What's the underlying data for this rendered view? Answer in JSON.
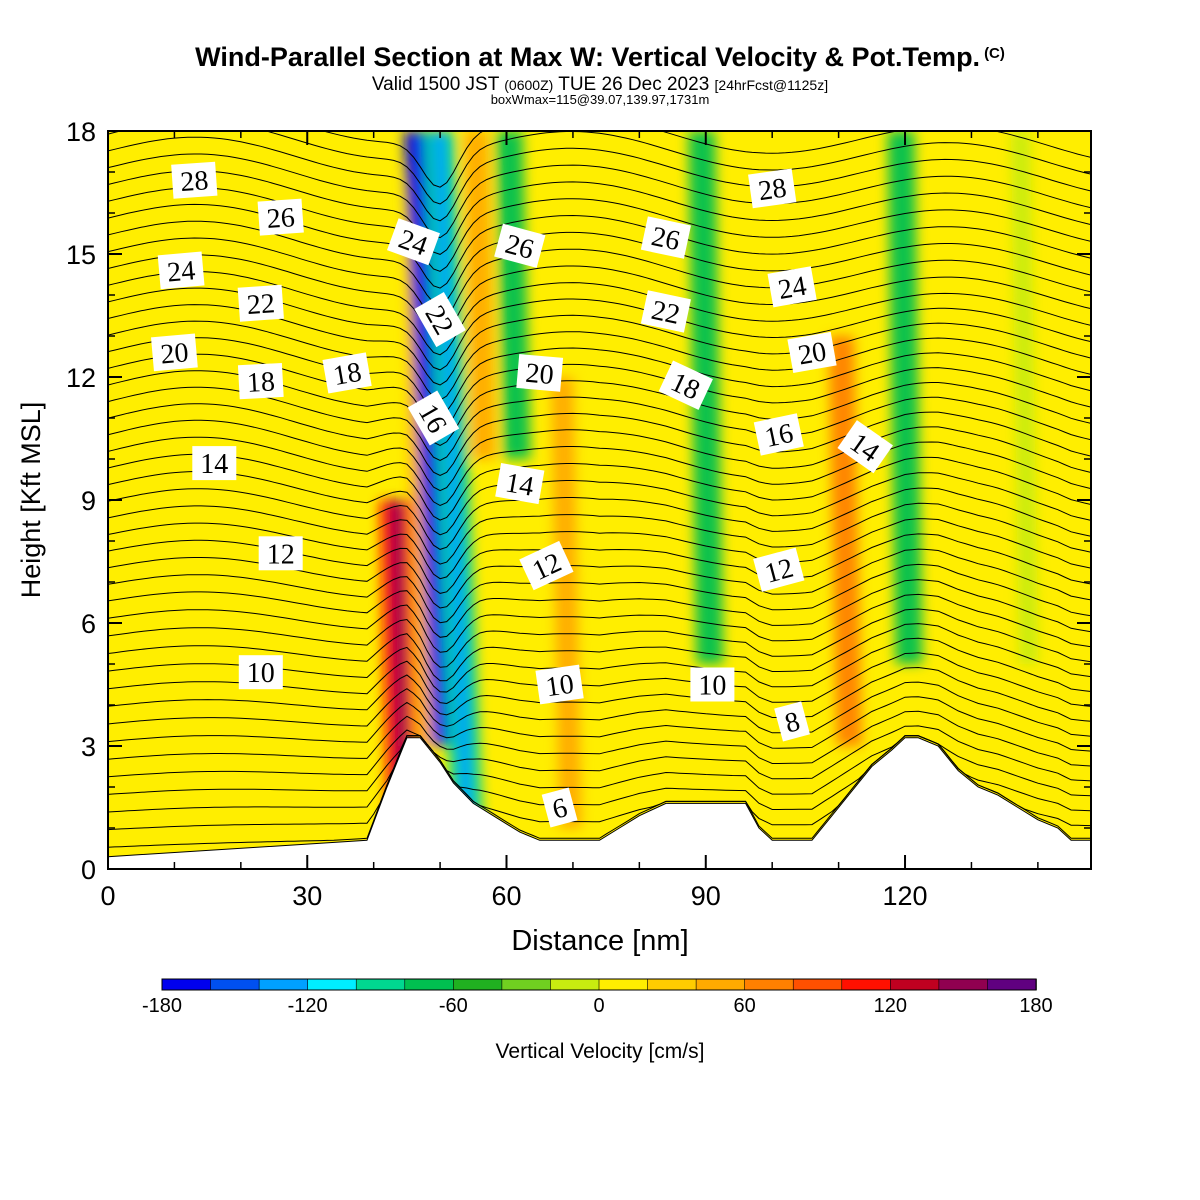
{
  "title": {
    "main": "Wind-Parallel Section at Max W: Vertical Velocity & Pot.Temp.",
    "copyright": "(C)",
    "valid_prefix": "Valid 1500 JST",
    "utc": "(0600Z)",
    "date": "TUE 26 Dec 2023",
    "forecast": "[24hrFcst@1125z]",
    "box": "boxWmax=115@39.07,139.97,1731m"
  },
  "chart_data": {
    "type": "heatmap",
    "xlabel": "Distance [nm]",
    "ylabel": "Height [Kft MSL]",
    "xlim": [
      0,
      148
    ],
    "ylim": [
      0,
      18
    ],
    "x_ticks": [
      0,
      30,
      60,
      90,
      120
    ],
    "y_ticks": [
      0,
      3,
      6,
      9,
      12,
      15,
      18
    ],
    "colorbar": {
      "label": "Vertical Velocity [cm/s]",
      "ticks": [
        -180,
        -120,
        -60,
        0,
        60,
        120,
        180
      ],
      "bounds": [
        -180,
        180
      ],
      "colors": [
        "#0000ee",
        "#0050f0",
        "#00a0ff",
        "#00eeff",
        "#00d890",
        "#00c050",
        "#20b020",
        "#70d020",
        "#c8ec10",
        "#ffee00",
        "#ffcc00",
        "#ffaa00",
        "#ff8000",
        "#ff5000",
        "#ff1000",
        "#c00020",
        "#900050",
        "#600080"
      ]
    },
    "vertical_velocity_features": [
      {
        "x": 44,
        "z_min": 0.5,
        "z_max": 9,
        "w": 110
      },
      {
        "x": 47,
        "z_min": 3,
        "z_max": 18,
        "w": 40
      },
      {
        "x": 50,
        "z_min": 3,
        "z_max": 18,
        "w": -180
      },
      {
        "x": 52,
        "z_min": 1,
        "z_max": 18,
        "w": -100
      },
      {
        "x": 56,
        "z_min": 10,
        "z_max": 18,
        "w": 50
      },
      {
        "x": 61,
        "z_min": 10,
        "z_max": 18,
        "w": -70
      },
      {
        "x": 69,
        "z_min": 1,
        "z_max": 12,
        "w": 40
      },
      {
        "x": 90,
        "z_min": 5,
        "z_max": 18,
        "w": -70
      },
      {
        "x": 111,
        "z_min": 3,
        "z_max": 13,
        "w": 60
      },
      {
        "x": 120,
        "z_min": 5,
        "z_max": 18,
        "w": -70
      },
      {
        "x": 138,
        "z_min": 5,
        "z_max": 18,
        "w": -20
      }
    ],
    "terrain": {
      "x": [
        0,
        39,
        42,
        45,
        47,
        50,
        52,
        55,
        58,
        60,
        62,
        65,
        68,
        71,
        74,
        77,
        80,
        84,
        88,
        92,
        96,
        98,
        100,
        103,
        106,
        109,
        112,
        115,
        118,
        120,
        122,
        125,
        128,
        131,
        134,
        137,
        140,
        143,
        145,
        148
      ],
      "height_kft": [
        0.3,
        0.7,
        2.0,
        3.2,
        3.2,
        2.6,
        2.1,
        1.6,
        1.3,
        1.1,
        0.9,
        0.7,
        0.7,
        0.7,
        0.7,
        1.0,
        1.3,
        1.6,
        1.6,
        1.6,
        1.6,
        1.0,
        0.7,
        0.7,
        0.7,
        1.3,
        1.9,
        2.5,
        2.9,
        3.2,
        3.2,
        3.0,
        2.4,
        2.0,
        1.8,
        1.5,
        1.2,
        1.0,
        0.7,
        0.7
      ]
    },
    "theta_contour_labels": [
      {
        "value": "28",
        "x": 13,
        "z": 16.8,
        "angle": -4
      },
      {
        "value": "26",
        "x": 26,
        "z": 15.9,
        "angle": -4
      },
      {
        "value": "24",
        "x": 11,
        "z": 14.6,
        "angle": -5
      },
      {
        "value": "22",
        "x": 23,
        "z": 13.8,
        "angle": -4
      },
      {
        "value": "20",
        "x": 10,
        "z": 12.6,
        "angle": -5
      },
      {
        "value": "18",
        "x": 23,
        "z": 11.9,
        "angle": -3
      },
      {
        "value": "18",
        "x": 36,
        "z": 12.1,
        "angle": -10
      },
      {
        "value": "14",
        "x": 16,
        "z": 9.9,
        "angle": 0
      },
      {
        "value": "12",
        "x": 26,
        "z": 7.7,
        "angle": 0
      },
      {
        "value": "10",
        "x": 23,
        "z": 4.8,
        "angle": 0
      },
      {
        "value": "24",
        "x": 46,
        "z": 15.3,
        "angle": 20
      },
      {
        "value": "22",
        "x": 50,
        "z": 13.4,
        "angle": 60
      },
      {
        "value": "16",
        "x": 49,
        "z": 11.0,
        "angle": 60
      },
      {
        "value": "26",
        "x": 62,
        "z": 15.2,
        "angle": 15
      },
      {
        "value": "20",
        "x": 65,
        "z": 12.1,
        "angle": 5
      },
      {
        "value": "14",
        "x": 62,
        "z": 9.4,
        "angle": 10
      },
      {
        "value": "12",
        "x": 66,
        "z": 7.4,
        "angle": -25
      },
      {
        "value": "10",
        "x": 68,
        "z": 4.5,
        "angle": -8
      },
      {
        "value": "6",
        "x": 68,
        "z": 1.5,
        "angle": -15
      },
      {
        "value": "26",
        "x": 84,
        "z": 15.4,
        "angle": 12
      },
      {
        "value": "22",
        "x": 84,
        "z": 13.6,
        "angle": 12
      },
      {
        "value": "18",
        "x": 87,
        "z": 11.8,
        "angle": 25
      },
      {
        "value": "10",
        "x": 91,
        "z": 4.5,
        "angle": 0
      },
      {
        "value": "28",
        "x": 100,
        "z": 16.6,
        "angle": -8
      },
      {
        "value": "24",
        "x": 103,
        "z": 14.2,
        "angle": -10
      },
      {
        "value": "20",
        "x": 106,
        "z": 12.6,
        "angle": -10
      },
      {
        "value": "16",
        "x": 101,
        "z": 10.6,
        "angle": -12
      },
      {
        "value": "12",
        "x": 101,
        "z": 7.3,
        "angle": -15
      },
      {
        "value": "8",
        "x": 103,
        "z": 3.6,
        "angle": -15
      },
      {
        "value": "14",
        "x": 114,
        "z": 10.3,
        "angle": 35
      }
    ]
  }
}
